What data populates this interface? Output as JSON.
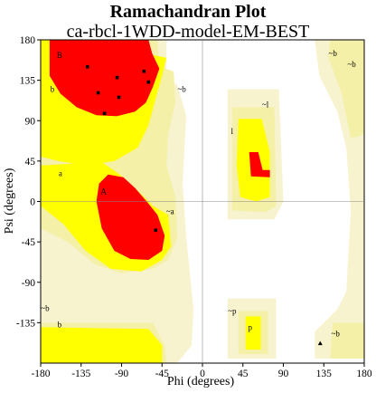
{
  "title": "Ramachandran Plot",
  "subtitle": "ca-rbcl-1WDD-model-EM-BEST",
  "chart_data": {
    "type": "scatter",
    "title": "Ramachandran Plot",
    "subtitle": "ca-rbcl-1WDD-model-EM-BEST",
    "xlabel": "Phi (degrees)",
    "ylabel": "Psi (degrees)",
    "xlim": [
      -180,
      180
    ],
    "ylim": [
      -180,
      180
    ],
    "xticks": [
      -180,
      -135,
      -90,
      -45,
      0,
      45,
      90,
      135,
      180
    ],
    "yticks": [
      180,
      135,
      90,
      45,
      0,
      -45,
      -90,
      -135
    ],
    "grid": false,
    "colors": {
      "core": "#ff0000",
      "allowed": "#ffff00",
      "generous": "#f5f0a8",
      "outer": "#f7f3cf",
      "points": "#000000"
    },
    "region_labels": [
      {
        "text": "B",
        "phi": -159,
        "psi": 160
      },
      {
        "text": "b",
        "phi": -167,
        "psi": 122
      },
      {
        "text": "a",
        "phi": -158,
        "psi": 28
      },
      {
        "text": "A",
        "phi": -110,
        "psi": 8
      },
      {
        "text": "~a",
        "phi": -36,
        "psi": -14
      },
      {
        "text": "~b",
        "phi": -23,
        "psi": 122
      },
      {
        "text": "~l",
        "phi": 70,
        "psi": 105
      },
      {
        "text": "l",
        "phi": 33,
        "psi": 75
      },
      {
        "text": "~b",
        "phi": -175,
        "psi": -122
      },
      {
        "text": "b",
        "phi": -159,
        "psi": -140
      },
      {
        "text": "~p",
        "phi": 33,
        "psi": -125
      },
      {
        "text": "p",
        "phi": 53,
        "psi": -143
      },
      {
        "text": "~b",
        "phi": 145,
        "psi": 162
      },
      {
        "text": "~b",
        "phi": 166,
        "psi": 150
      },
      {
        "text": "~b",
        "phi": 148,
        "psi": -150
      }
    ],
    "points": [
      {
        "phi": -128,
        "psi": 150,
        "marker": "square"
      },
      {
        "phi": -65,
        "psi": 145,
        "marker": "square"
      },
      {
        "phi": -116,
        "psi": 121,
        "marker": "square"
      },
      {
        "phi": -95,
        "psi": 138,
        "marker": "square"
      },
      {
        "phi": -60,
        "psi": 133,
        "marker": "square"
      },
      {
        "phi": -93,
        "psi": 116,
        "marker": "square"
      },
      {
        "phi": -109,
        "psi": 98,
        "marker": "square"
      },
      {
        "phi": -52,
        "psi": -32,
        "marker": "square"
      },
      {
        "phi": 131,
        "psi": -158,
        "marker": "triangle"
      }
    ]
  }
}
